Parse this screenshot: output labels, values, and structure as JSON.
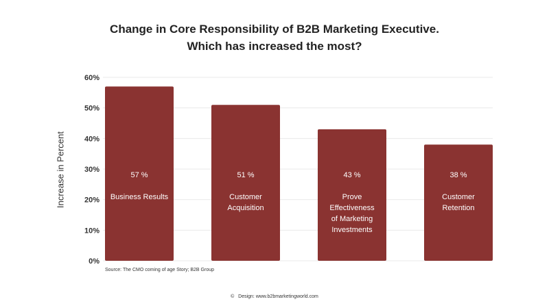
{
  "chart_data": {
    "type": "bar",
    "title": "Change in Core Responsibility of B2B Marketing Executive.\nWhich has increased the most?",
    "title_lines": [
      "Change in Core Responsibility of B2B Marketing Executive.",
      "Which has increased the most?"
    ],
    "ylabel": "Increase in Percent",
    "xlabel": "",
    "ylim": [
      0,
      60
    ],
    "yticks": [
      "0%",
      "10%",
      "20%",
      "30%",
      "40%",
      "50%",
      "60%"
    ],
    "grid": true,
    "categories": [
      [
        "Business Results"
      ],
      [
        "Customer",
        "Acquisition"
      ],
      [
        "Prove",
        "Effectiveness",
        "of Marketing",
        "Investments"
      ],
      [
        "Customer",
        "Retention"
      ]
    ],
    "values": [
      57,
      51,
      43,
      38
    ],
    "data_labels": [
      "57 %",
      "51 %",
      "43 %",
      "38 %"
    ],
    "bar_color": "#8a3331"
  },
  "source": "Source: The CMO coming of age Story; B2B Group",
  "credit": "Design: www.b2bmarketingworld.com",
  "credit_icon": "copyright-icon"
}
